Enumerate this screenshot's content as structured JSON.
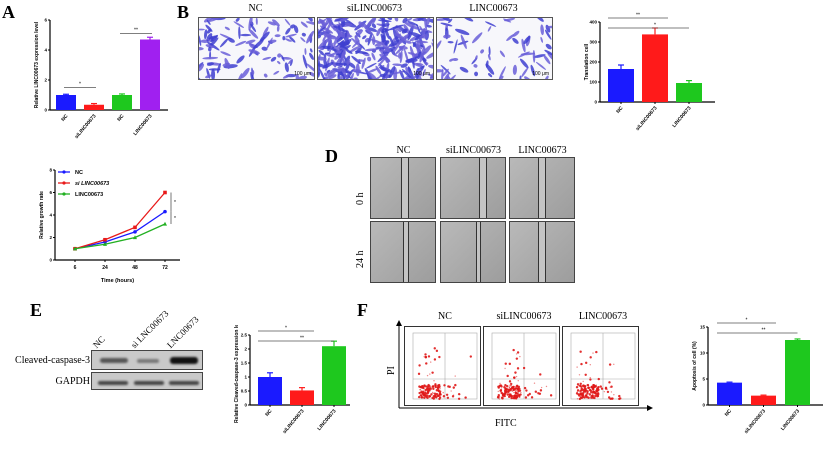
{
  "panels": {
    "A": {
      "label": "A"
    },
    "B": {
      "label": "B",
      "columns": [
        "NC",
        "siLINC00673",
        "LINC00673"
      ],
      "scalebar": "100 μm"
    },
    "D": {
      "label": "D",
      "columns": [
        "NC",
        "siLINC00673",
        "LINC00673"
      ],
      "rows": [
        "0 h",
        "24 h"
      ]
    },
    "E": {
      "label": "E",
      "lanes": [
        "NC",
        "si LNC00673",
        "LNC00673"
      ],
      "bands": [
        "Cleaved-caspase-3",
        "GAPDH"
      ]
    },
    "F": {
      "label": "F",
      "columns": [
        "NC",
        "siLINC00673",
        "LINC00673"
      ],
      "y_axis": "PI",
      "x_axis": "FITC"
    }
  },
  "chart_data": [
    {
      "id": "A",
      "type": "bar",
      "title": "",
      "xlabel": "",
      "ylabel": "Relative LINC00673 expression level",
      "categories": [
        "NC",
        "siLINC00673",
        "NC",
        "LINC00673"
      ],
      "values": [
        1.0,
        0.35,
        1.0,
        4.7
      ],
      "errors": [
        0.05,
        0.08,
        0.07,
        0.15
      ],
      "colors": [
        "#1a1aff",
        "#ff1a1a",
        "#1ec81e",
        "#a020f0"
      ],
      "ylim": [
        0,
        6
      ],
      "yticks": [
        0,
        2,
        4,
        6
      ],
      "significance": [
        {
          "between": [
            0,
            1
          ],
          "mark": "*"
        },
        {
          "between": [
            2,
            3
          ],
          "mark": "**"
        }
      ]
    },
    {
      "id": "B",
      "type": "bar",
      "xlabel": "",
      "ylabel": "Translation cell",
      "categories": [
        "NC",
        "siLINC00673",
        "LINC00673"
      ],
      "values": [
        165,
        338,
        95
      ],
      "errors": [
        20,
        32,
        12
      ],
      "colors": [
        "#1a1aff",
        "#ff1a1a",
        "#1ec81e"
      ],
      "ylim": [
        0,
        400
      ],
      "yticks": [
        0,
        100,
        200,
        300,
        400
      ],
      "significance": [
        {
          "between": [
            0,
            1
          ],
          "mark": "**"
        },
        {
          "between": [
            0,
            2
          ],
          "mark": "*"
        }
      ]
    },
    {
      "id": "C",
      "type": "line",
      "xlabel": "Time (hours)",
      "ylabel": "Relative growth rate",
      "x": [
        6,
        24,
        48,
        72
      ],
      "series": [
        {
          "name": "NC",
          "values": [
            1.0,
            1.6,
            2.5,
            4.3
          ],
          "color": "#1a1aff",
          "marker": "circle"
        },
        {
          "name": "si LINC00673",
          "values": [
            1.0,
            1.8,
            2.9,
            6.0
          ],
          "color": "#e81a1a",
          "marker": "square"
        },
        {
          "name": "LINC00673",
          "values": [
            1.0,
            1.4,
            2.0,
            3.2
          ],
          "color": "#22b022",
          "marker": "triangle"
        }
      ],
      "ylim": [
        0,
        8
      ],
      "yticks": [
        0,
        2,
        4,
        6,
        8
      ],
      "legend_position": "top-left",
      "significance": [
        {
          "mark": "*"
        },
        {
          "mark": "*"
        }
      ]
    },
    {
      "id": "E",
      "type": "bar",
      "ylabel": "Relative Cleaved-caspase-3 expression level",
      "categories": [
        "NC",
        "siLINC00673",
        "LINC00673"
      ],
      "values": [
        1.0,
        0.52,
        2.1
      ],
      "errors": [
        0.15,
        0.1,
        0.18
      ],
      "colors": [
        "#1a1aff",
        "#ff1a1a",
        "#1ec81e"
      ],
      "ylim": [
        0,
        2.5
      ],
      "yticks": [
        0.0,
        0.5,
        1.0,
        1.5,
        2.0,
        2.5
      ],
      "significance": [
        {
          "between": [
            0,
            1
          ],
          "mark": "*"
        },
        {
          "between": [
            0,
            2
          ],
          "mark": "**"
        }
      ]
    },
    {
      "id": "F",
      "type": "bar",
      "ylabel": "Apoptosis of cell (%)",
      "categories": [
        "NC",
        "siLINC00673",
        "LINC00673"
      ],
      "values": [
        4.3,
        1.8,
        12.5
      ],
      "errors": [
        0.1,
        0.1,
        0.2
      ],
      "colors": [
        "#1a1aff",
        "#ff1a1a",
        "#1ec81e"
      ],
      "ylim": [
        0,
        15
      ],
      "yticks": [
        0,
        5,
        10,
        15
      ],
      "significance": [
        {
          "between": [
            0,
            1
          ],
          "mark": "*"
        },
        {
          "between": [
            0,
            2
          ],
          "mark": "**"
        }
      ]
    }
  ]
}
